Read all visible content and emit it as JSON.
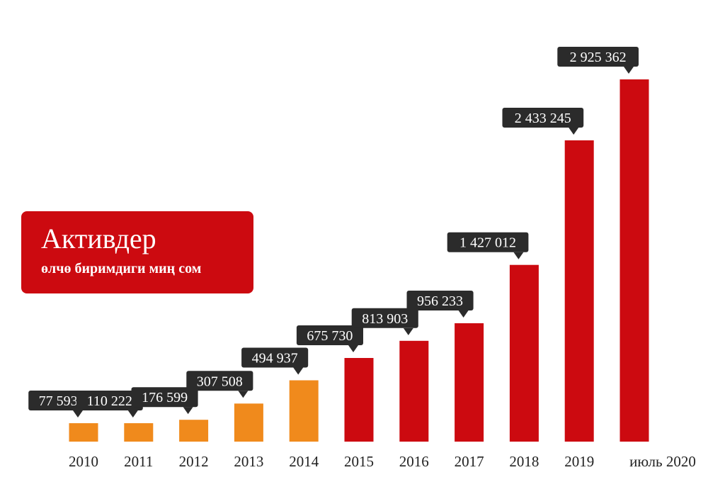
{
  "colors": {
    "early": "#f08a1c",
    "late": "#cc0a10",
    "label_bg": "#2b2b2b",
    "title_bg": "#cc0a10"
  },
  "title_box": {
    "title": "Активдер",
    "subtitle": "өлчө биримдиги миң сом"
  },
  "chart_data": {
    "type": "bar",
    "title": "Активдер",
    "subtitle": "өлчө биримдиги миң сом",
    "categories": [
      "2010",
      "2011",
      "2012",
      "2013",
      "2014",
      "2015",
      "2016",
      "2017",
      "2018",
      "2019",
      "июль 2020"
    ],
    "values": [
      77593,
      110222,
      176599,
      307508,
      494937,
      675730,
      813903,
      956233,
      1427012,
      2433245,
      2925362
    ],
    "value_labels": [
      "77 593",
      "110 222",
      "176 599",
      "307 508",
      "494 937",
      "675 730",
      "813 903",
      "956 233",
      "1 427 012",
      "2 433 245",
      "2 925 362"
    ],
    "series_colors": [
      "early",
      "early",
      "early",
      "early",
      "early",
      "late",
      "late",
      "late",
      "late",
      "late",
      "late"
    ],
    "xlabel": "",
    "ylabel": "",
    "grid": false
  }
}
